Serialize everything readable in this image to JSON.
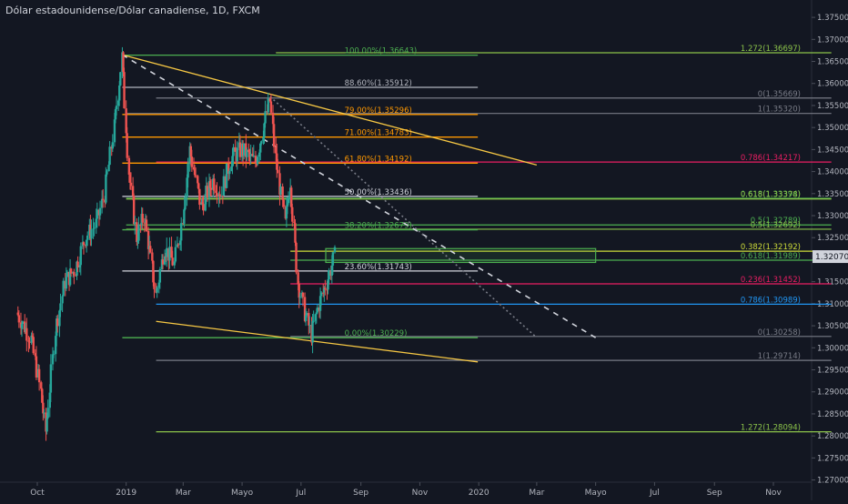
{
  "chart_data": {
    "type": "candlestick",
    "title": "Dólar estadounidense/Dólar canadiense, 1D, FXCM",
    "ylim": [
      1.2695,
      1.3775
    ],
    "current_price": "1.32070",
    "y_ticks": [
      "1.37500",
      "1.37000",
      "1.36500",
      "1.36000",
      "1.35500",
      "1.35000",
      "1.34500",
      "1.34000",
      "1.33500",
      "1.33000",
      "1.32500",
      "1.32000",
      "1.31500",
      "1.31000",
      "1.30500",
      "1.30000",
      "1.29500",
      "1.29000",
      "1.28500",
      "1.28000",
      "1.27500",
      "1.27000"
    ],
    "x_ticks": [
      {
        "label": "Oct",
        "date": "2018-10-01"
      },
      {
        "label": "2019",
        "date": "2019-01-01"
      },
      {
        "label": "Mar",
        "date": "2019-03-01"
      },
      {
        "label": "Mayo",
        "date": "2019-05-01"
      },
      {
        "label": "Jul",
        "date": "2019-07-01"
      },
      {
        "label": "Sep",
        "date": "2019-09-01"
      },
      {
        "label": "Nov",
        "date": "2019-11-01"
      },
      {
        "label": "2020",
        "date": "2020-01-01"
      },
      {
        "label": "Mar",
        "date": "2020-03-01"
      },
      {
        "label": "Mayo",
        "date": "2020-05-01"
      },
      {
        "label": "Jul",
        "date": "2020-07-01"
      },
      {
        "label": "Sep",
        "date": "2020-09-01"
      },
      {
        "label": "Nov",
        "date": "2020-11-01"
      }
    ],
    "price_path": [
      [
        "2018-09-10",
        1.308
      ],
      [
        "2018-09-25",
        1.302
      ],
      [
        "2018-10-05",
        1.29
      ],
      [
        "2018-10-10",
        1.281
      ],
      [
        "2018-10-20",
        1.304
      ],
      [
        "2018-10-30",
        1.315
      ],
      [
        "2018-11-10",
        1.318
      ],
      [
        "2018-11-20",
        1.325
      ],
      [
        "2018-12-01",
        1.328
      ],
      [
        "2018-12-10",
        1.335
      ],
      [
        "2018-12-20",
        1.35
      ],
      [
        "2018-12-28",
        1.366
      ],
      [
        "2019-01-04",
        1.34
      ],
      [
        "2019-01-12",
        1.325
      ],
      [
        "2019-01-20",
        1.33
      ],
      [
        "2019-02-01",
        1.312
      ],
      [
        "2019-02-10",
        1.323
      ],
      [
        "2019-02-20",
        1.319
      ],
      [
        "2019-03-01",
        1.33
      ],
      [
        "2019-03-08",
        1.345
      ],
      [
        "2019-03-20",
        1.332
      ],
      [
        "2019-04-01",
        1.338
      ],
      [
        "2019-04-10",
        1.335
      ],
      [
        "2019-04-20",
        1.343
      ],
      [
        "2019-05-01",
        1.345
      ],
      [
        "2019-05-15",
        1.342
      ],
      [
        "2019-05-30",
        1.356
      ],
      [
        "2019-06-05",
        1.343
      ],
      [
        "2019-06-15",
        1.328
      ],
      [
        "2019-06-20",
        1.338
      ],
      [
        "2019-06-28",
        1.315
      ],
      [
        "2019-07-05",
        1.308
      ],
      [
        "2019-07-12",
        1.303
      ],
      [
        "2019-07-20",
        1.31
      ],
      [
        "2019-07-28",
        1.315
      ],
      [
        "2019-08-05",
        1.3207
      ]
    ],
    "fib_lines": [
      {
        "price": 1.36643,
        "color": "#4caf50",
        "label": "100.00%(1.36643)",
        "from": "2018-12-28",
        "to": "2019-12-31",
        "label_date": "2019-08-15"
      },
      {
        "price": 1.35912,
        "color": "#b2b5be",
        "label": "88.60%(1.35912)",
        "from": "2018-12-28",
        "to": "2019-12-31",
        "label_date": "2019-08-15"
      },
      {
        "price": 1.35296,
        "color": "#ff9800",
        "label": "79.00%(1.35296)",
        "from": "2018-12-28",
        "to": "2019-12-31",
        "label_date": "2019-08-15"
      },
      {
        "price": 1.34783,
        "color": "#ff9800",
        "label": "71.00%(1.34783)",
        "from": "2018-12-28",
        "to": "2019-12-31",
        "label_date": "2019-08-15"
      },
      {
        "price": 1.34192,
        "color": "#ff9800",
        "label": "61.80%(1.34192)",
        "from": "2018-12-28",
        "to": "2019-12-31",
        "label_date": "2019-08-15"
      },
      {
        "price": 1.33436,
        "color": "#d1d4dc",
        "label": "50.00%(1.33436)",
        "from": "2018-12-28",
        "to": "2019-12-31",
        "label_date": "2019-08-15"
      },
      {
        "price": 1.32679,
        "color": "#4caf50",
        "label": "38.20%(1.32679)",
        "from": "2018-12-28",
        "to": "2019-12-31",
        "label_date": "2019-08-15"
      },
      {
        "price": 1.31743,
        "color": "#d1d4dc",
        "label": "23.60%(1.31743)",
        "from": "2018-12-28",
        "to": "2019-12-31",
        "label_date": "2019-08-15"
      },
      {
        "price": 1.30229,
        "color": "#4caf50",
        "label": "0.00%(1.30229)",
        "from": "2018-12-28",
        "to": "2019-12-31",
        "label_date": "2019-08-15"
      }
    ],
    "ext_lines": [
      {
        "price": 1.36697,
        "color": "#8bc34a",
        "label": "1.272(1.36697)",
        "from": "2019-06-05",
        "to": "2020-12-31"
      },
      {
        "price": 1.35669,
        "color": "#787b86",
        "label": "0(1.35669)",
        "from": "2019-02-01",
        "to": "2020-12-31"
      },
      {
        "price": 1.3532,
        "color": "#787b86",
        "label": "1(1.35320)",
        "from": "2019-01-01",
        "to": "2020-12-31"
      },
      {
        "price": 1.34217,
        "color": "#e91e63",
        "label": "0.786(1.34217)",
        "from": "2019-02-01",
        "to": "2020-12-31"
      },
      {
        "price": 1.33394,
        "color": "#4caf50",
        "label": "0.618(1.33394)",
        "from": "2019-01-01",
        "to": "2020-12-31"
      },
      {
        "price": 1.33378,
        "color": "#8bc34a",
        "label": "0.618(1.33378)",
        "from": "2019-01-01",
        "to": "2020-12-31"
      },
      {
        "price": 1.32789,
        "color": "#4caf50",
        "label": "0.5(1.32789)",
        "from": "2019-01-01",
        "to": "2020-12-31"
      },
      {
        "price": 1.32692,
        "color": "#8bc34a",
        "label": "0.5(1.32692)",
        "from": "2019-01-01",
        "to": "2020-12-31"
      },
      {
        "price": 1.32192,
        "color": "#cddc39",
        "label": "0.382(1.32192)",
        "from": "2019-06-20",
        "to": "2020-12-31"
      },
      {
        "price": 1.31989,
        "color": "#4caf50",
        "label": "0.618(1.31989)",
        "from": "2019-06-20",
        "to": "2020-12-31"
      },
      {
        "price": 1.31452,
        "color": "#e91e63",
        "label": "0.236(1.31452)",
        "from": "2019-06-20",
        "to": "2020-12-31"
      },
      {
        "price": 1.30989,
        "color": "#2196f3",
        "label": "0.786(1.30989)",
        "from": "2019-02-01",
        "to": "2020-12-31"
      },
      {
        "price": 1.30258,
        "color": "#787b86",
        "label": "0(1.30258)",
        "from": "2019-06-20",
        "to": "2020-12-31"
      },
      {
        "price": 1.29714,
        "color": "#787b86",
        "label": "1(1.29714)",
        "from": "2019-02-01",
        "to": "2020-12-31"
      },
      {
        "price": 1.28094,
        "color": "#8bc34a",
        "label": "1.272(1.28094)",
        "from": "2019-02-01",
        "to": "2020-12-31"
      }
    ],
    "trendlines": [
      {
        "from": [
          "2018-12-28",
          1.3665
        ],
        "to": [
          "2020-03-01",
          1.3415
        ],
        "color": "#f7c844",
        "dash": false
      },
      {
        "from": [
          "2019-02-01",
          1.306
        ],
        "to": [
          "2019-12-31",
          1.2968
        ],
        "color": "#f7c844",
        "dash": false
      },
      {
        "from": [
          "2018-12-28",
          1.3665
        ],
        "to": [
          "2020-05-01",
          1.3023
        ],
        "color": "#d1d4dc",
        "dash": true
      },
      {
        "from": [
          "2019-05-30",
          1.357
        ],
        "to": [
          "2020-03-01",
          1.3023
        ],
        "color": "#787b86",
        "dash": true
      }
    ],
    "zone": {
      "from_date": "2019-08-05",
      "to_date": "2020-05-01",
      "top": 1.3219,
      "bottom": 1.32
    }
  }
}
